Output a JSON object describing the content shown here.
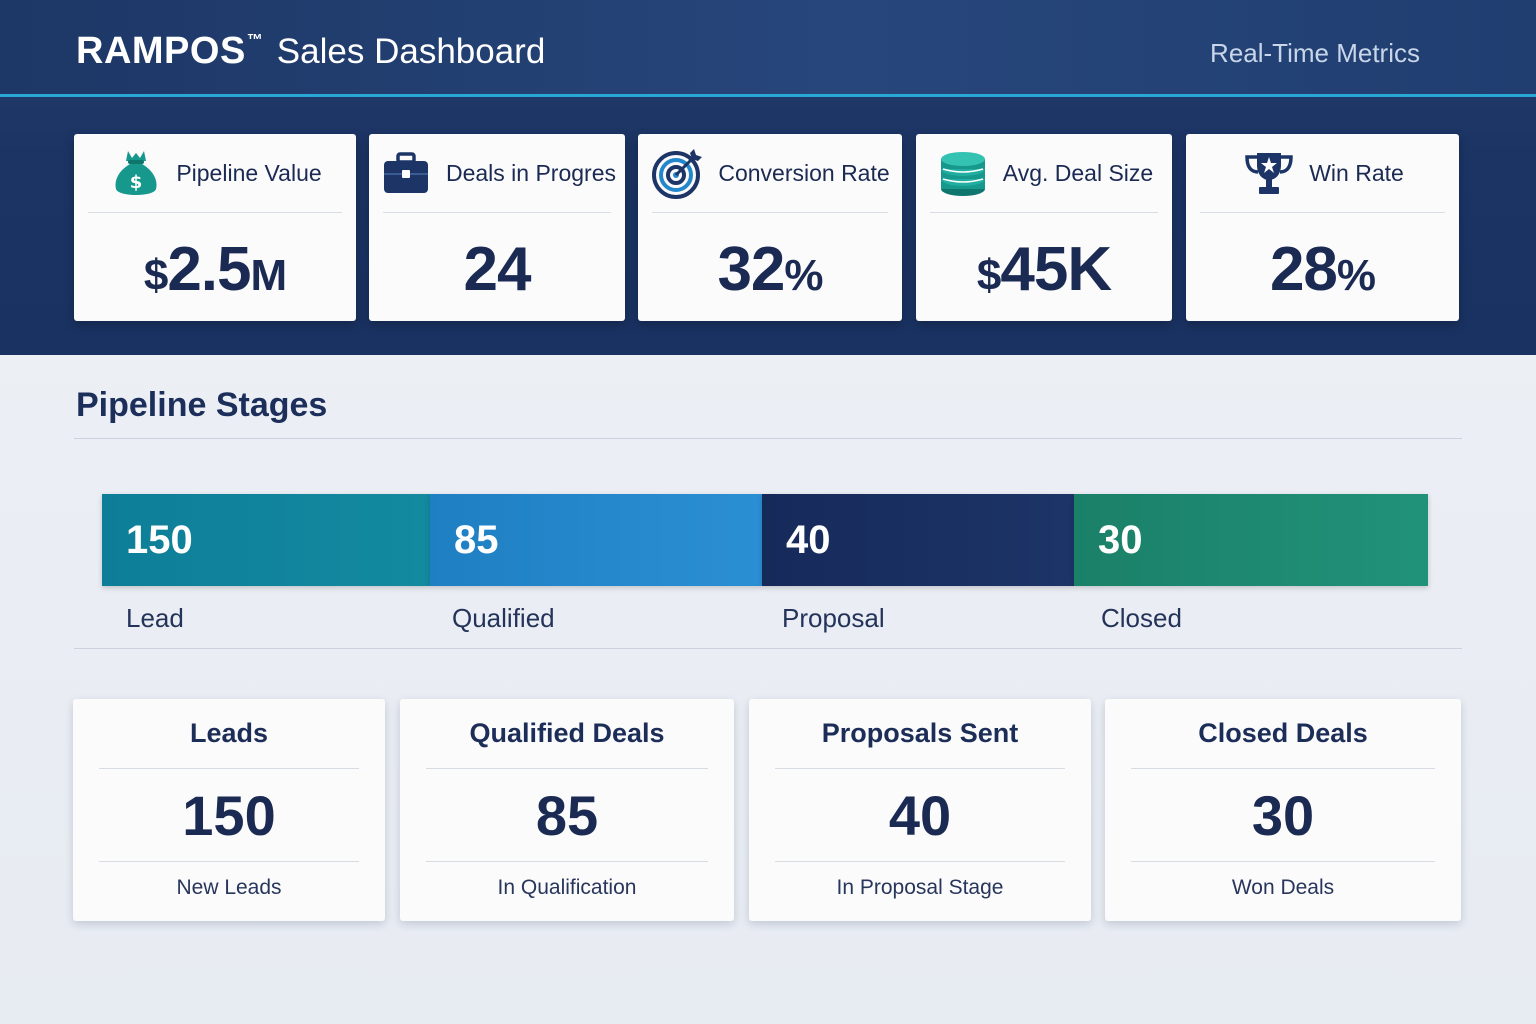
{
  "header": {
    "brand": "RAMPOS",
    "trademark": "™",
    "title": "Sales Dashboard",
    "subtitle": "Real-Time Metrics"
  },
  "kpis": [
    {
      "icon": "money-bag-icon",
      "label": "Pipeline Value",
      "prefix": "$",
      "value": "2.5",
      "unit": "M"
    },
    {
      "icon": "briefcase-icon",
      "label": "Deals in Progres",
      "prefix": "",
      "value": "24",
      "unit": ""
    },
    {
      "icon": "target-icon",
      "label": "Conversion Rate",
      "prefix": "",
      "value": "32",
      "unit": "%"
    },
    {
      "icon": "coin-stack-icon",
      "label": "Avg. Deal Size",
      "prefix": "$",
      "value": "45K",
      "unit": ""
    },
    {
      "icon": "trophy-icon",
      "label": "Win Rate",
      "prefix": "",
      "value": "28",
      "unit": "%"
    }
  ],
  "pipeline": {
    "title": "Pipeline Stages",
    "stages": [
      {
        "name": "Lead",
        "count": "150"
      },
      {
        "name": "Qualified",
        "count": "85"
      },
      {
        "name": "Proposal",
        "count": "40"
      },
      {
        "name": "Closed",
        "count": "30"
      }
    ]
  },
  "summary_cards": [
    {
      "title": "Leads",
      "value": "150",
      "caption": "New Leads"
    },
    {
      "title": "Qualified Deals",
      "value": "85",
      "caption": "In Qualification"
    },
    {
      "title": "Proposals Sent",
      "value": "40",
      "caption": "In Proposal Stage"
    },
    {
      "title": "Closed Deals",
      "value": "30",
      "caption": "Won Deals"
    }
  ],
  "colors": {
    "header": "#1d3766",
    "accent_rule": "#29a7d6",
    "lead": "#12849c",
    "qualified": "#2487cb",
    "proposal": "#1a2f62",
    "closed": "#1f8a70",
    "icon_teal": "#16988c",
    "icon_navy": "#1c3566"
  }
}
